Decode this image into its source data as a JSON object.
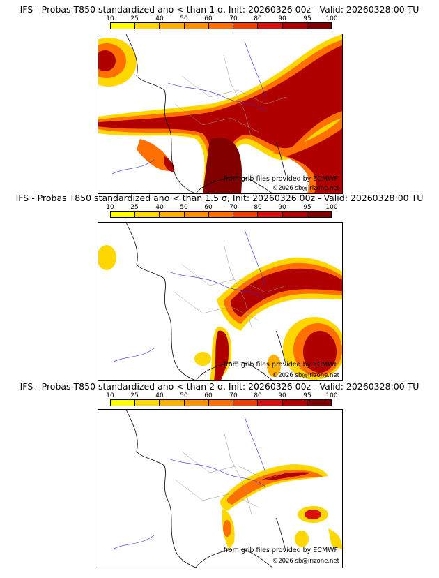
{
  "colorbar": {
    "labels": [
      "10",
      "25",
      "40",
      "50",
      "60",
      "70",
      "80",
      "90",
      "95",
      "100"
    ],
    "colors": [
      "#ffff00",
      "#ffd700",
      "#ffb000",
      "#ff9000",
      "#ff7000",
      "#f04000",
      "#d81010",
      "#b00000",
      "#800000"
    ]
  },
  "panels": [
    {
      "title": "IFS - Probas T850  standardized ano < than 1 σ, Init: 20260326 00z - Valid: 20260328:00 TU",
      "credit": "from grib files provided by ECMWF",
      "copyright": "©2026 sb@irizone.net"
    },
    {
      "title": "IFS - Probas T850  standardized ano < than 1.5 σ, Init: 20260326 00z - Valid: 20260328:00 TU",
      "credit": "from grib files provided by ECMWF",
      "copyright": "©2026 sb@irizone.net"
    },
    {
      "title": "IFS - Probas T850  standardized ano < than 2 σ, Init: 20260326 00z - Valid: 20260328:00 TU",
      "credit": "from grib files provided by ECMWF",
      "copyright": "©2026 sb@irizone.net"
    }
  ]
}
